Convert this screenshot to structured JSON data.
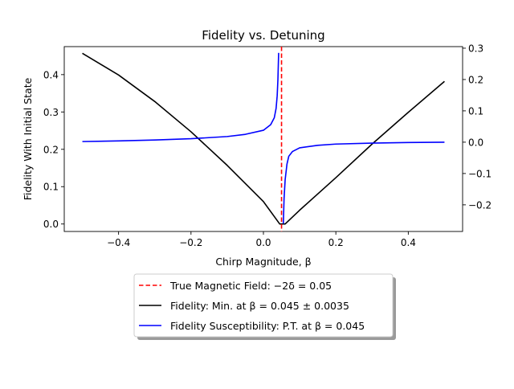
{
  "chart_data": {
    "type": "line",
    "title": "Fidelity vs. Detuning",
    "xlabel": "Chirp Magnitude, β",
    "ylabel": "Fidelity With Initial State",
    "xlim": [
      -0.55,
      0.55
    ],
    "ylim_left": [
      -0.02,
      0.475
    ],
    "ylim_right": [
      -0.285,
      0.305
    ],
    "x_ticks": [
      -0.4,
      -0.2,
      0.0,
      0.2,
      0.4
    ],
    "x_tick_labels": [
      "−0.4",
      "−0.2",
      "0.0",
      "0.2",
      "0.4"
    ],
    "y_left_ticks": [
      0.0,
      0.1,
      0.2,
      0.3,
      0.4
    ],
    "y_left_tick_labels": [
      "0.0",
      "0.1",
      "0.2",
      "0.3",
      "0.4"
    ],
    "y_right_ticks": [
      -0.2,
      -0.1,
      0.0,
      0.1,
      0.2,
      0.3
    ],
    "y_right_tick_labels": [
      "−0.2",
      "−0.1",
      "0.0",
      "0.1",
      "0.2",
      "0.3"
    ],
    "grid": false,
    "legend_placement": "below plot, centered",
    "vline": {
      "x": 0.05,
      "color": "#ff0000",
      "style": "dashed"
    },
    "series": [
      {
        "name": "True Magnetic Field: −2δ = 0.05",
        "color": "#ff0000",
        "style": "dashed",
        "kind": "vline",
        "x": 0.05
      },
      {
        "name": "Fidelity: Min. at β = 0.045 ± 0.0035",
        "color": "#000000",
        "style": "solid",
        "axis": "left",
        "x": [
          -0.5,
          -0.4,
          -0.3,
          -0.2,
          -0.1,
          0.0,
          0.045,
          0.06,
          0.1,
          0.2,
          0.3,
          0.4,
          0.5
        ],
        "y": [
          0.457,
          0.399,
          0.328,
          0.247,
          0.157,
          0.06,
          0.0,
          0.0,
          0.037,
          0.124,
          0.214,
          0.299,
          0.382
        ]
      },
      {
        "name": "Fidelity Susceptibility: P.T. at β = 0.045",
        "color": "#0000ff",
        "style": "solid",
        "axis": "right",
        "segments": [
          {
            "x": [
              -0.5,
              -0.4,
              -0.3,
              -0.2,
              -0.1,
              -0.05,
              0.0,
              0.02,
              0.03,
              0.035,
              0.038,
              0.04,
              0.042
            ],
            "y": [
              0.002,
              0.004,
              0.007,
              0.011,
              0.018,
              0.025,
              0.038,
              0.056,
              0.078,
              0.108,
              0.148,
              0.2,
              0.285
            ]
          },
          {
            "x": [
              0.055,
              0.057,
              0.06,
              0.065,
              0.07,
              0.08,
              0.1,
              0.15,
              0.2,
              0.3,
              0.4,
              0.5
            ],
            "y": [
              -0.26,
              -0.18,
              -0.12,
              -0.07,
              -0.045,
              -0.03,
              -0.018,
              -0.01,
              -0.006,
              -0.003,
              -0.001,
              0.0
            ]
          }
        ]
      }
    ],
    "legend": [
      "True Magnetic Field: −2δ = 0.05",
      "Fidelity: Min. at β = 0.045 ± 0.0035",
      "Fidelity Susceptibility: P.T. at β = 0.045"
    ]
  }
}
